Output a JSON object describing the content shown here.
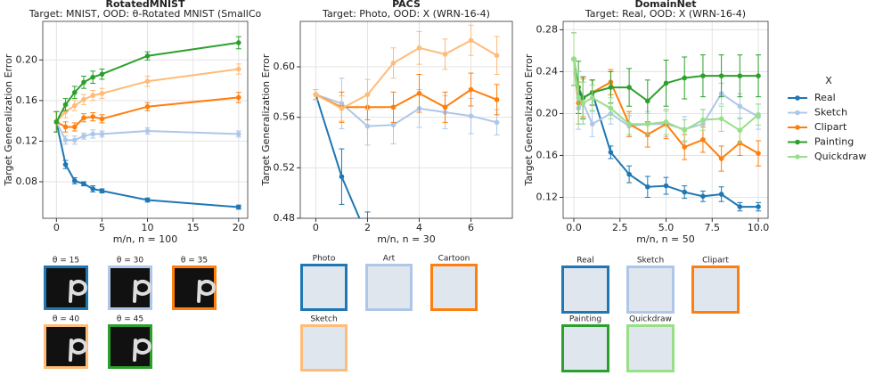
{
  "chart_data": [
    {
      "type": "line",
      "title": "RotatedMNIST",
      "subtitle": "Target: MNIST, OOD: θ-Rotated MNIST (SmallCo",
      "x_label": "m/n, n = 100",
      "y_label": "Target Generalization Error",
      "grid": true,
      "x": [
        0,
        1,
        2,
        3,
        4,
        5,
        10,
        20
      ],
      "xlim": [
        -1.5,
        21
      ],
      "xticks": [
        0,
        5,
        10,
        15,
        20
      ],
      "ylim": [
        0.044,
        0.238
      ],
      "yticks": [
        0.08,
        0.12,
        0.16,
        {
          "value": 0.2,
          "label": "0.20"
        }
      ],
      "series": [
        {
          "name": "θ = 15",
          "color": "#1f77b4",
          "values": [
            0.139,
            0.097,
            0.081,
            0.078,
            0.073,
            0.071,
            0.062,
            0.055
          ],
          "errors": [
            0.01,
            0.004,
            0.003,
            0.002,
            0.003,
            0.002,
            0.002,
            0.002
          ]
        },
        {
          "name": "θ = 30",
          "color": "#aec7e8",
          "values": [
            0.139,
            0.121,
            0.121,
            0.125,
            0.127,
            0.127,
            0.13,
            0.127
          ],
          "errors": [
            0.01,
            0.004,
            0.004,
            0.003,
            0.004,
            0.003,
            0.003,
            0.003
          ]
        },
        {
          "name": "θ = 35",
          "color": "#ff7f0e",
          "values": [
            0.139,
            0.134,
            0.134,
            0.143,
            0.144,
            0.142,
            0.154,
            0.163
          ],
          "errors": [
            0.01,
            0.005,
            0.004,
            0.004,
            0.004,
            0.004,
            0.004,
            0.005
          ]
        },
        {
          "name": "θ = 40",
          "color": "#ffbb78",
          "values": [
            0.139,
            0.149,
            0.155,
            0.161,
            0.165,
            0.167,
            0.179,
            0.191
          ],
          "errors": [
            0.01,
            0.006,
            0.005,
            0.005,
            0.005,
            0.005,
            0.005,
            0.005
          ]
        },
        {
          "name": "θ = 45",
          "color": "#2ca02c",
          "values": [
            0.139,
            0.156,
            0.168,
            0.178,
            0.183,
            0.186,
            0.204,
            0.217
          ],
          "errors": [
            0.01,
            0.006,
            0.006,
            0.006,
            0.006,
            0.005,
            0.004,
            0.006
          ]
        }
      ]
    },
    {
      "type": "line",
      "title": "PACS",
      "subtitle": "Target: Photo, OOD: X (WRN-16-4)",
      "x_label": "m/n, n = 30",
      "y_label": "Target Generalization Error",
      "grid": true,
      "x": [
        0,
        1,
        2,
        3,
        4,
        5,
        6,
        7
      ],
      "xlim": [
        -0.6,
        7.6
      ],
      "xticks": [
        0,
        2,
        4,
        6
      ],
      "ylim": [
        0.48,
        0.636
      ],
      "yticks": [
        0.48,
        0.52,
        0.56,
        {
          "value": 0.6,
          "label": "0.60"
        }
      ],
      "series": [
        {
          "name": "Photo",
          "color": "#1f77b4",
          "values": [
            0.578,
            0.513,
            0.465,
            null,
            null,
            null,
            null,
            null
          ],
          "errors": [
            0.004,
            0.022,
            0.02,
            null,
            null,
            null,
            null,
            null
          ]
        },
        {
          "name": "Art",
          "color": "#aec7e8",
          "values": [
            0.578,
            0.571,
            0.553,
            0.554,
            0.567,
            0.564,
            0.561,
            0.556
          ],
          "errors": [
            0.004,
            0.02,
            0.015,
            0.015,
            0.015,
            0.013,
            0.014,
            0.01
          ]
        },
        {
          "name": "Cartoon",
          "color": "#ff7f0e",
          "values": [
            0.578,
            0.568,
            0.568,
            0.568,
            0.579,
            0.568,
            0.582,
            0.574
          ],
          "errors": [
            0.004,
            0.012,
            0.01,
            0.012,
            0.015,
            0.012,
            0.013,
            0.012
          ]
        },
        {
          "name": "Sketch",
          "color": "#ffbb78",
          "values": [
            0.578,
            0.567,
            0.578,
            0.603,
            0.615,
            0.61,
            0.621,
            0.609
          ],
          "errors": [
            0.004,
            0.01,
            0.012,
            0.012,
            0.013,
            0.012,
            0.012,
            0.015
          ]
        }
      ]
    },
    {
      "type": "line",
      "title": "DomainNet",
      "subtitle": "Target: Real, OOD: X (WRN-16-4)",
      "x_label": "m/n, n = 50",
      "y_label": "Target Generalization Error",
      "grid": true,
      "legend": "outside right",
      "legend_title": "X",
      "x": [
        0,
        0.25,
        0.5,
        1,
        2,
        3,
        4,
        5,
        6,
        7,
        8,
        9,
        10
      ],
      "xlim": [
        -0.58,
        10.53
      ],
      "xticks": [
        {
          "value": 0,
          "label": "0.0"
        },
        2.5,
        {
          "value": 5,
          "label": "5.0"
        },
        7.5,
        {
          "value": 10,
          "label": "10.0"
        }
      ],
      "ylim": [
        0.1,
        0.288
      ],
      "yticks": [
        0.12,
        0.16,
        {
          "value": 0.2,
          "label": "0.20"
        },
        0.24,
        0.28
      ],
      "series": [
        {
          "name": "Real",
          "color": "#1f77b4",
          "values": [
            0.252,
            0.22,
            0.215,
            0.22,
            0.163,
            0.142,
            0.13,
            0.131,
            0.125,
            0.121,
            0.123,
            0.111,
            0.111
          ],
          "errors": [
            0.025,
            0.02,
            0.02,
            0.012,
            0.006,
            0.008,
            0.01,
            0.008,
            0.006,
            0.005,
            0.007,
            0.004,
            0.004
          ]
        },
        {
          "name": "Sketch",
          "color": "#aec7e8",
          "values": [
            0.252,
            0.205,
            0.21,
            0.19,
            0.2,
            0.188,
            0.19,
            0.19,
            0.185,
            0.19,
            0.219,
            0.207,
            0.197
          ],
          "errors": [
            0.025,
            0.02,
            0.02,
            0.012,
            0.01,
            0.01,
            0.012,
            0.012,
            0.012,
            0.014,
            0.01,
            0.012,
            0.012
          ]
        },
        {
          "name": "Clipart",
          "color": "#ff7f0e",
          "values": [
            0.252,
            0.21,
            0.215,
            0.22,
            0.23,
            0.19,
            0.18,
            0.19,
            0.168,
            0.175,
            0.157,
            0.172,
            0.162
          ],
          "errors": [
            0.025,
            0.02,
            0.018,
            0.012,
            0.012,
            0.012,
            0.012,
            0.014,
            0.012,
            0.012,
            0.012,
            0.012,
            0.012
          ]
        },
        {
          "name": "Painting",
          "color": "#2ca02c",
          "values": [
            0.252,
            0.225,
            0.215,
            0.22,
            0.225,
            0.225,
            0.212,
            0.229,
            0.234,
            0.236,
            0.236,
            0.236,
            0.236
          ],
          "errors": [
            0.025,
            0.025,
            0.02,
            0.012,
            0.015,
            0.018,
            0.02,
            0.022,
            0.02,
            0.02,
            0.02,
            0.02,
            0.02
          ]
        },
        {
          "name": "Quickdraw",
          "color": "#98df8a",
          "values": [
            0.252,
            0.215,
            0.21,
            0.215,
            0.205,
            0.19,
            0.19,
            0.192,
            0.184,
            0.194,
            0.195,
            0.184,
            0.199
          ],
          "errors": [
            0.025,
            0.025,
            0.02,
            0.012,
            0.01,
            0.01,
            0.01,
            0.012,
            0.01,
            0.01,
            0.012,
            0.012,
            0.01
          ]
        }
      ]
    }
  ]
}
